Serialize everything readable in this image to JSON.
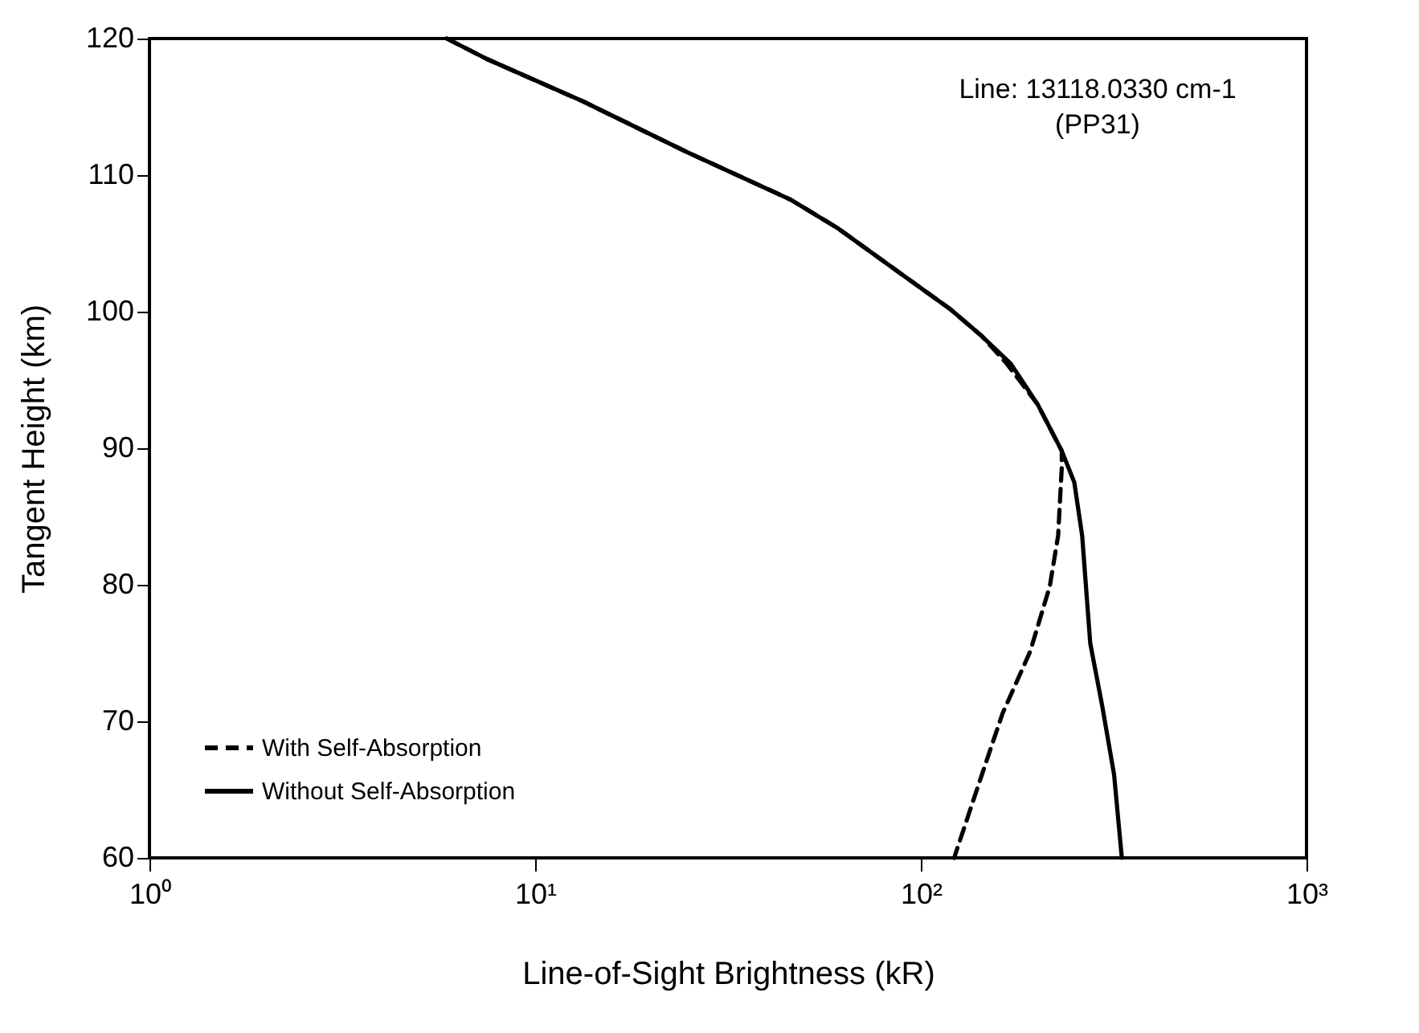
{
  "chart_data": {
    "type": "line",
    "xlabel": "Line-of-Sight Brightness (kR)",
    "ylabel": "Tangent Height (km)",
    "log": "x",
    "xlim": [
      1,
      1000
    ],
    "xticks": [
      {
        "value": 1,
        "label": "10⁰"
      },
      {
        "value": 10,
        "label": "10¹"
      },
      {
        "value": 100,
        "label": "10²"
      },
      {
        "value": 1000,
        "label": "10³"
      }
    ],
    "ylim": [
      60,
      120
    ],
    "yticks": [
      60,
      70,
      80,
      90,
      100,
      110,
      120
    ],
    "grid": false,
    "legend": "bottom left",
    "annotations": [
      "Line: 13118.0330 cm-1",
      "(PP31)"
    ],
    "series": [
      {
        "name": "With Self-Absorption",
        "color": "#000000",
        "line_style": "dashed",
        "x": [
          5.9,
          7.5,
          13.3,
          24.7,
          46,
          61,
          89.6,
          119,
          144,
          167,
          201,
          232,
          232,
          227,
          216,
          192,
          163,
          144,
          122
        ],
        "values": [
          120,
          118.5,
          115.4,
          111.7,
          108.2,
          106.1,
          102.7,
          100.2,
          98.2,
          96.2,
          93.2,
          89.8,
          88.6,
          83.6,
          79.9,
          75.1,
          70.6,
          66.1,
          60
        ]
      },
      {
        "name": "Without Self-Absorption",
        "color": "#000000",
        "line_style": "solid",
        "x": [
          5.9,
          7.5,
          13.3,
          24.7,
          46,
          61,
          89.6,
          119,
          144,
          171,
          201,
          232,
          250,
          262,
          275,
          295,
          317,
          332
        ],
        "values": [
          120,
          118.5,
          115.4,
          111.7,
          108.2,
          106.1,
          102.7,
          100.2,
          98.2,
          96.2,
          93.2,
          89.8,
          87.5,
          83.6,
          75.7,
          71.2,
          66.1,
          60
        ]
      }
    ]
  }
}
